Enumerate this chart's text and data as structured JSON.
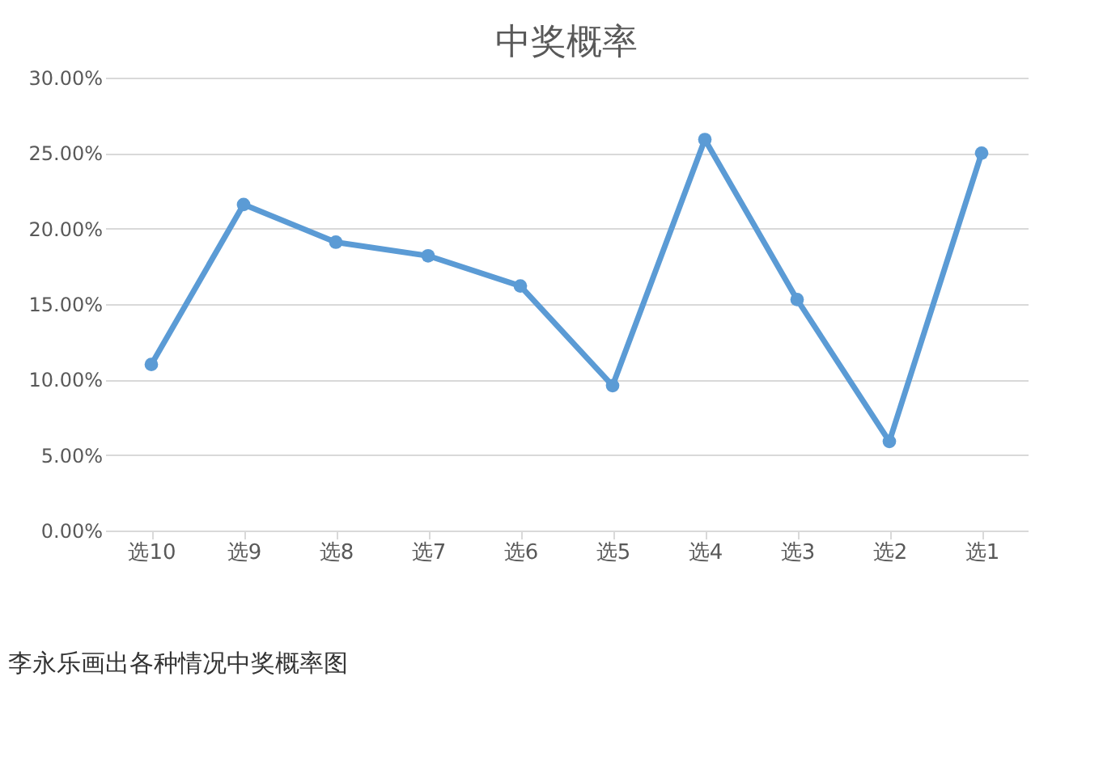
{
  "chart_data": {
    "type": "line",
    "title": "中奖概率",
    "categories": [
      "选10",
      "选9",
      "选8",
      "选7",
      "选6",
      "选5",
      "选4",
      "选3",
      "选2",
      "选1"
    ],
    "series": [
      {
        "color": "#5b9bd5",
        "values": [
          11.0,
          21.6,
          19.1,
          18.2,
          16.2,
          9.6,
          25.9,
          15.3,
          5.9,
          25.0
        ]
      }
    ],
    "ylim": [
      0,
      30
    ],
    "yticks": [
      {
        "value": 0,
        "label": "0.00%"
      },
      {
        "value": 5,
        "label": "5.00%"
      },
      {
        "value": 10,
        "label": "10.00%"
      },
      {
        "value": 15,
        "label": "15.00%"
      },
      {
        "value": 20,
        "label": "20.00%"
      },
      {
        "value": 25,
        "label": "25.00%"
      },
      {
        "value": 30,
        "label": "30.00%"
      }
    ],
    "grid": "y",
    "marker": "circle",
    "line_style": "solid",
    "annotations": [
      "李永乐画出各种情况中奖概率图"
    ]
  }
}
